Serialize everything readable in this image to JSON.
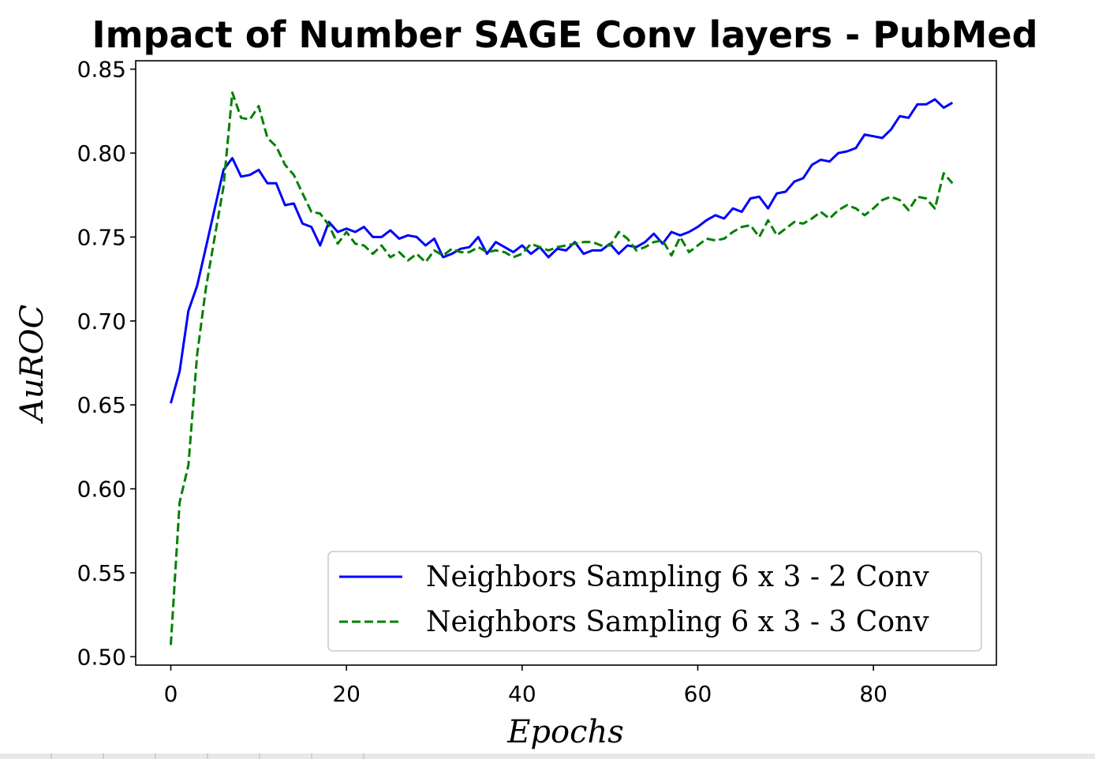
{
  "chart_data": {
    "type": "line",
    "title": "Impact of Number SAGE Conv layers - PubMed",
    "xlabel": "Epochs",
    "ylabel": "AuROC",
    "xlim": [
      -4,
      94
    ],
    "ylim": [
      0.495,
      0.855
    ],
    "xticks": [
      0,
      20,
      40,
      60,
      80
    ],
    "xtick_labels": [
      "0",
      "20",
      "40",
      "60",
      "80"
    ],
    "yticks": [
      0.5,
      0.55,
      0.6,
      0.65,
      0.7,
      0.75,
      0.8,
      0.85
    ],
    "ytick_labels": [
      "0.50",
      "0.55",
      "0.60",
      "0.65",
      "0.70",
      "0.75",
      "0.80",
      "0.85"
    ],
    "grid": false,
    "legend_position": "lower-right",
    "series": [
      {
        "name": "Neighbors Sampling 6 x 3 - 2 Conv",
        "color": "#0000ff",
        "style": "solid",
        "x": [
          0,
          1,
          2,
          3,
          4,
          5,
          6,
          7,
          8,
          9,
          10,
          11,
          12,
          13,
          14,
          15,
          16,
          17,
          18,
          19,
          20,
          21,
          22,
          23,
          24,
          25,
          26,
          27,
          28,
          29,
          30,
          31,
          32,
          33,
          34,
          35,
          36,
          37,
          38,
          39,
          40,
          41,
          42,
          43,
          44,
          45,
          46,
          47,
          48,
          49,
          50,
          51,
          52,
          53,
          54,
          55,
          56,
          57,
          58,
          59,
          60,
          61,
          62,
          63,
          64,
          65,
          66,
          67,
          68,
          69,
          70,
          71,
          72,
          73,
          74,
          75,
          76,
          77,
          78,
          79,
          80,
          81,
          82,
          83,
          84,
          85,
          86,
          87,
          88,
          89
        ],
        "values": [
          0.651,
          0.67,
          0.706,
          0.721,
          0.744,
          0.767,
          0.79,
          0.797,
          0.786,
          0.787,
          0.79,
          0.782,
          0.782,
          0.769,
          0.77,
          0.758,
          0.756,
          0.745,
          0.759,
          0.753,
          0.755,
          0.753,
          0.756,
          0.75,
          0.75,
          0.754,
          0.749,
          0.751,
          0.75,
          0.745,
          0.749,
          0.738,
          0.74,
          0.743,
          0.744,
          0.75,
          0.74,
          0.747,
          0.744,
          0.741,
          0.745,
          0.74,
          0.744,
          0.738,
          0.743,
          0.742,
          0.747,
          0.74,
          0.742,
          0.742,
          0.746,
          0.74,
          0.745,
          0.744,
          0.747,
          0.752,
          0.746,
          0.753,
          0.751,
          0.753,
          0.756,
          0.76,
          0.763,
          0.761,
          0.767,
          0.765,
          0.773,
          0.774,
          0.767,
          0.776,
          0.777,
          0.783,
          0.785,
          0.793,
          0.796,
          0.795,
          0.8,
          0.801,
          0.803,
          0.811,
          0.81,
          0.809,
          0.814,
          0.822,
          0.821,
          0.829,
          0.829,
          0.832,
          0.827,
          0.83
        ]
      },
      {
        "name": "Neighbors Sampling 6 x 3 - 3 Conv",
        "color": "#008000",
        "style": "dashed",
        "x": [
          0,
          1,
          2,
          3,
          4,
          5,
          6,
          7,
          8,
          9,
          10,
          11,
          12,
          13,
          14,
          15,
          16,
          17,
          18,
          19,
          20,
          21,
          22,
          23,
          24,
          25,
          26,
          27,
          28,
          29,
          30,
          31,
          32,
          33,
          34,
          35,
          36,
          37,
          38,
          39,
          40,
          41,
          42,
          43,
          44,
          45,
          46,
          47,
          48,
          49,
          50,
          51,
          52,
          53,
          54,
          55,
          56,
          57,
          58,
          59,
          60,
          61,
          62,
          63,
          64,
          65,
          66,
          67,
          68,
          69,
          70,
          71,
          72,
          73,
          74,
          75,
          76,
          77,
          78,
          79,
          80,
          81,
          82,
          83,
          84,
          85,
          86,
          87,
          88,
          89
        ],
        "values": [
          0.507,
          0.592,
          0.614,
          0.68,
          0.72,
          0.75,
          0.78,
          0.836,
          0.821,
          0.82,
          0.828,
          0.809,
          0.804,
          0.793,
          0.787,
          0.776,
          0.765,
          0.764,
          0.757,
          0.746,
          0.753,
          0.746,
          0.745,
          0.74,
          0.745,
          0.738,
          0.741,
          0.736,
          0.74,
          0.735,
          0.742,
          0.739,
          0.743,
          0.741,
          0.741,
          0.744,
          0.741,
          0.742,
          0.741,
          0.738,
          0.74,
          0.746,
          0.744,
          0.742,
          0.744,
          0.745,
          0.746,
          0.747,
          0.747,
          0.745,
          0.745,
          0.753,
          0.749,
          0.742,
          0.744,
          0.747,
          0.748,
          0.739,
          0.75,
          0.741,
          0.745,
          0.749,
          0.748,
          0.749,
          0.753,
          0.756,
          0.757,
          0.75,
          0.76,
          0.751,
          0.755,
          0.759,
          0.758,
          0.761,
          0.765,
          0.761,
          0.766,
          0.769,
          0.767,
          0.763,
          0.767,
          0.772,
          0.774,
          0.772,
          0.766,
          0.774,
          0.773,
          0.767,
          0.788,
          0.782
        ]
      }
    ]
  }
}
